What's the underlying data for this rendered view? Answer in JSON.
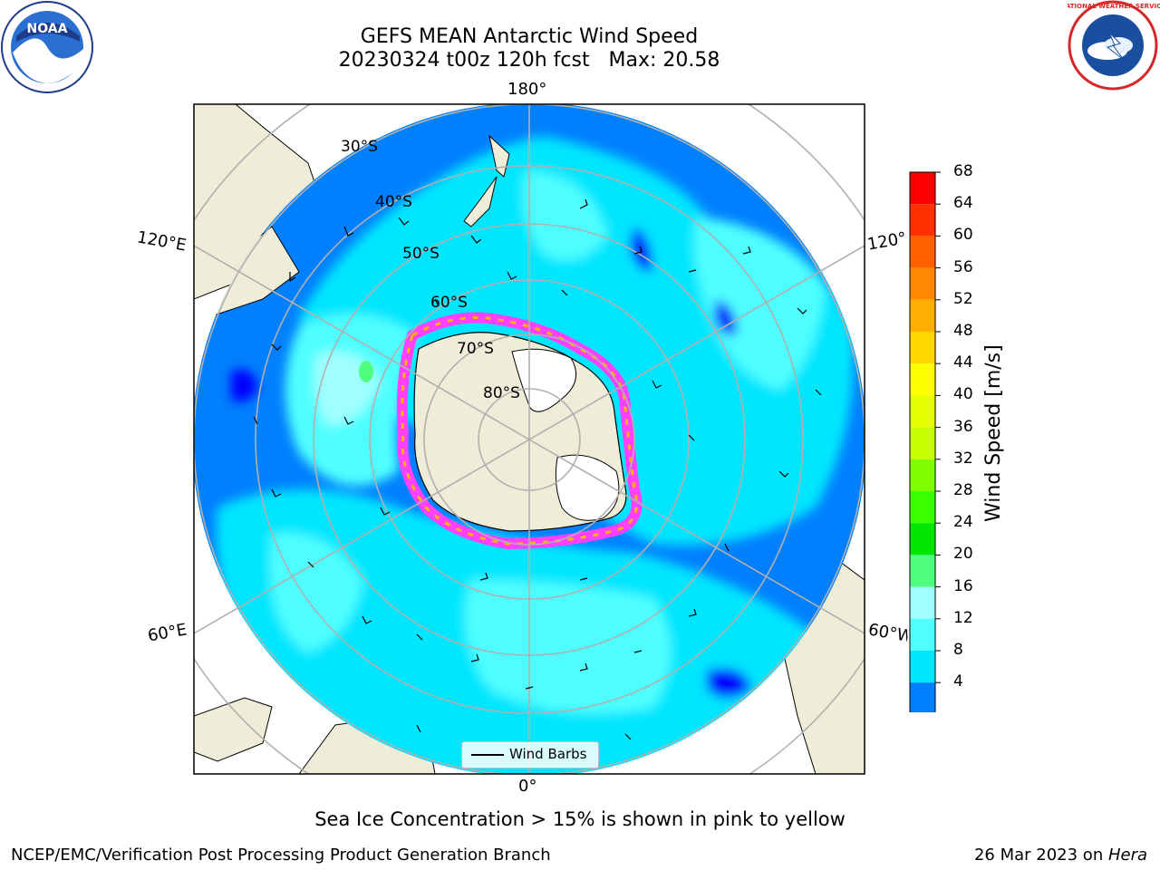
{
  "header": {
    "title_line1": "GEFS MEAN Antarctic Wind Speed",
    "title_line2": "20230324 t00z 120h fcst   Max: 20.58"
  },
  "logos": {
    "noara_text": "NOAA",
    "nws_text": "NATIONAL WEATHER SERVICE"
  },
  "map": {
    "longitude_labels": {
      "top": "180°",
      "bottom": "0°",
      "left_upper": "120°E",
      "left_lower": "60°E",
      "right_upper": "120°W",
      "right_lower": "60°W"
    },
    "latitude_labels": [
      "30°S",
      "40°S",
      "50°S",
      "60°S",
      "70°S",
      "80°S"
    ],
    "legend_label": "Wind Barbs"
  },
  "colorbar": {
    "label": "Wind Speed [m/s]",
    "ticks": [
      "68",
      "64",
      "60",
      "56",
      "52",
      "48",
      "44",
      "40",
      "36",
      "32",
      "28",
      "24",
      "20",
      "16",
      "12",
      "8",
      "4"
    ],
    "colors": [
      "#ff0000",
      "#ff3000",
      "#ff6000",
      "#ff8800",
      "#ffb000",
      "#ffd800",
      "#ffff00",
      "#e6ff00",
      "#c8ff00",
      "#80ff00",
      "#3cff00",
      "#00e600",
      "#50ff80",
      "#a0ffff",
      "#50ffff",
      "#00e6ff",
      "#0080ff"
    ],
    "extend_color": "#0000ff"
  },
  "caption": "Sea Ice Concentration > 15% is shown in pink to yellow",
  "footer": {
    "left": "NCEP/EMC/Verification Post Processing Product Generation Branch",
    "right_date": "26 Mar 2023 on ",
    "right_machine": "Hera"
  }
}
